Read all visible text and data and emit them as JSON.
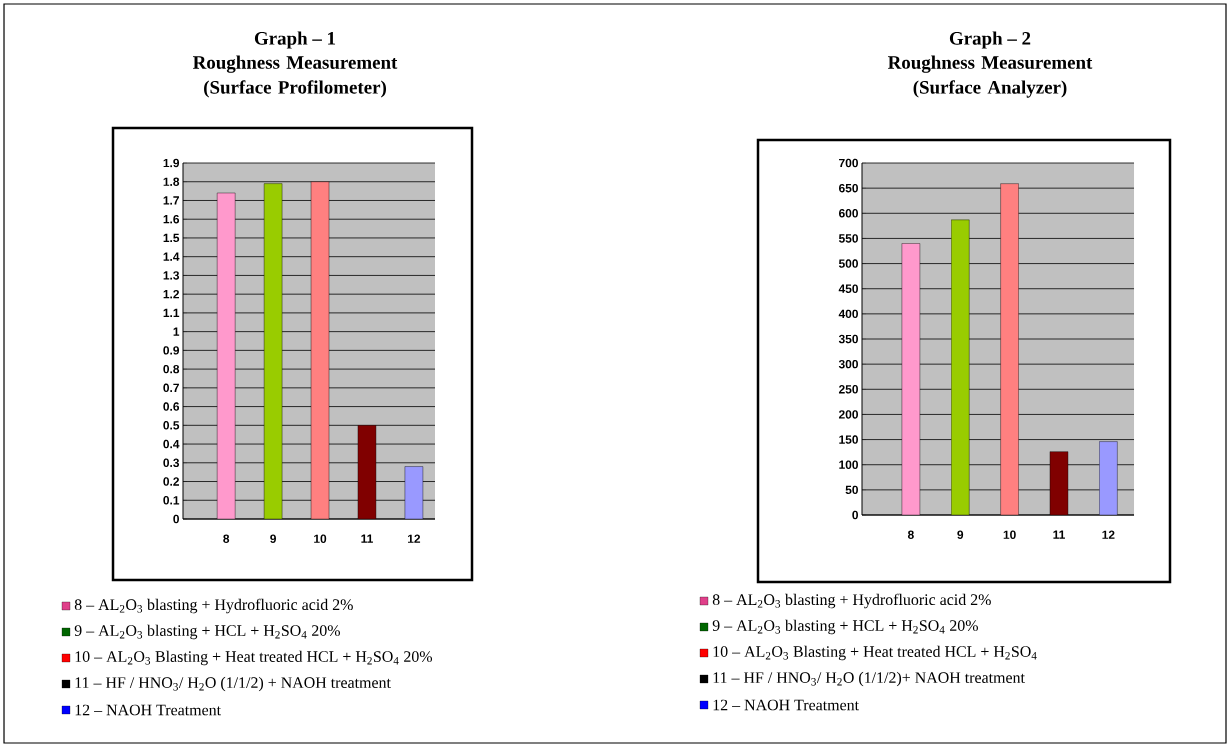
{
  "chart_data": [
    {
      "type": "bar",
      "title": "Graph – 1",
      "subtitle": "Roughness Measurement (Surface Profilometer)",
      "categories": [
        "8",
        "9",
        "10",
        "11",
        "12"
      ],
      "values": [
        1.74,
        1.79,
        1.8,
        0.5,
        0.28
      ],
      "colors": [
        "#ff99cc",
        "#99cc00",
        "#ff8080",
        "#800000",
        "#9999ff"
      ],
      "ylim": [
        0,
        1.9
      ],
      "yticks": [
        0,
        0.1,
        0.2,
        0.3,
        0.4,
        0.5,
        0.6,
        0.7,
        0.8,
        0.9,
        1,
        1.1,
        1.2,
        1.3,
        1.4,
        1.5,
        1.6,
        1.7,
        1.8,
        1.9
      ],
      "grid": "y",
      "annotations": [
        "8 – AL$_{2}$O$_{3}$ blasting + Hydrofluoric acid 2%",
        "9 – AL$_{2}$O$_{3}$ blasting + HCL + H$_{2}$SO$_{4}$ 20%",
        "10 – AL$_{2}$O$_{3}$ Blasting + Heat treated HCL + H$_{2}$SO$_{4}$ 20%",
        "11 – HF / HNO$_{3}$/ H$_{2}$O (1/1/2) + NAOH treatment",
        "12 – NAOH Treatment"
      ]
    },
    {
      "type": "bar",
      "title": "Graph – 2",
      "subtitle": "Roughness Measurement (Surface Analyzer)",
      "categories": [
        "8",
        "9",
        "10",
        "11",
        "12"
      ],
      "values": [
        540,
        587,
        659,
        126,
        146
      ],
      "colors": [
        "#ff99cc",
        "#99cc00",
        "#ff8080",
        "#800000",
        "#9999ff"
      ],
      "ylim": [
        0,
        700
      ],
      "yticks": [
        0,
        50,
        100,
        150,
        200,
        250,
        300,
        350,
        400,
        450,
        500,
        550,
        600,
        650,
        700
      ],
      "grid": "y",
      "annotations": [
        "8 – AL$_{2}$O$_{3}$ blasting + Hydrofluoric acid 2%",
        "9 – AL$_{2}$O$_{3}$ blasting + HCL + H$_{2}$SO$_{4}$ 20%",
        "10 – AL$_{2}$O$_{3}$ Blasting + Heat treated HCL + H$_{2}$SO$_{4}$",
        "11 – HF / HNO$_{3}$/ H$_{2}$O (1/1/2)+ NAOH treatment",
        "12 – NAOH Treatment"
      ]
    }
  ]
}
